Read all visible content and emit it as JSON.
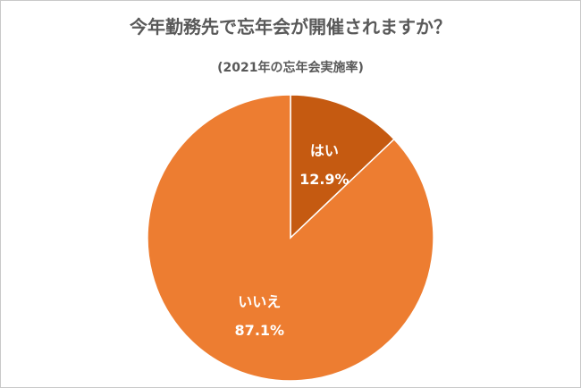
{
  "chart_data": {
    "type": "pie",
    "title": "今年勤務先で忘年会が開催されますか？",
    "subtitle": "(2021年の忘年会実施率)",
    "slices": [
      {
        "label": "はい",
        "value": 12.9,
        "value_label": "12.9%",
        "color": "#C55A11"
      },
      {
        "label": "いいえ",
        "value": 87.1,
        "value_label": "87.1%",
        "color": "#ED7D31"
      }
    ],
    "start_angle_deg": 0,
    "direction": "clockwise",
    "legend": "none"
  }
}
